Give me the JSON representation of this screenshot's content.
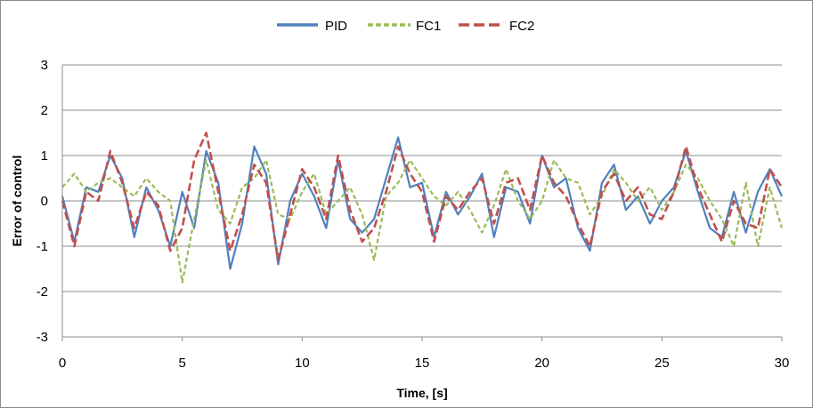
{
  "chart_data": {
    "type": "line",
    "title": "",
    "xlabel": "Time, [s]",
    "ylabel": "Error of control",
    "xlim": [
      0,
      30
    ],
    "ylim": [
      -3,
      3
    ],
    "x_ticks": [
      "0",
      "5",
      "10",
      "15",
      "20",
      "25",
      "30"
    ],
    "y_ticks": [
      "3",
      "2",
      "1",
      "0",
      "-1",
      "-2",
      "-3"
    ],
    "grid": "horizontal",
    "legend_position": "top-center",
    "series": [
      {
        "name": "PID",
        "color": "#4f81bd",
        "style": "solid",
        "x": [
          0,
          0.5,
          1,
          1.5,
          2,
          2.5,
          3,
          3.5,
          4,
          4.5,
          5,
          5.5,
          6,
          6.5,
          7,
          7.5,
          8,
          8.5,
          9,
          9.5,
          10,
          10.5,
          11,
          11.5,
          12,
          12.5,
          13,
          13.5,
          14,
          14.5,
          15,
          15.5,
          16,
          16.5,
          17,
          17.5,
          18,
          18.5,
          19,
          19.5,
          20,
          20.5,
          21,
          21.5,
          22,
          22.5,
          23,
          23.5,
          24,
          24.5,
          25,
          25.5,
          26,
          26.5,
          27,
          27.5,
          28,
          28.5,
          29,
          29.5,
          30
        ],
        "y": [
          0.1,
          -0.9,
          0.3,
          0.2,
          1.0,
          0.5,
          -0.8,
          0.3,
          -0.2,
          -1.0,
          0.2,
          -0.6,
          1.1,
          0.4,
          -1.5,
          -0.5,
          1.2,
          0.6,
          -1.4,
          0.0,
          0.6,
          0.1,
          -0.6,
          0.9,
          -0.4,
          -0.7,
          -0.4,
          0.5,
          1.4,
          0.3,
          0.4,
          -0.8,
          0.2,
          -0.3,
          0.1,
          0.6,
          -0.8,
          0.3,
          0.2,
          -0.5,
          1.0,
          0.3,
          0.5,
          -0.6,
          -1.1,
          0.4,
          0.8,
          -0.2,
          0.1,
          -0.5,
          0.0,
          0.3,
          1.1,
          0.2,
          -0.6,
          -0.8,
          0.2,
          -0.7,
          0.2,
          0.7,
          0.1
        ]
      },
      {
        "name": "FC1",
        "color": "#9bbb59",
        "style": "dashed",
        "x": [
          0,
          0.5,
          1,
          1.5,
          2,
          2.5,
          3,
          3.5,
          4,
          4.5,
          5,
          5.5,
          6,
          6.5,
          7,
          7.5,
          8,
          8.5,
          9,
          9.5,
          10,
          10.5,
          11,
          11.5,
          12,
          12.5,
          13,
          13.5,
          14,
          14.5,
          15,
          15.5,
          16,
          16.5,
          17,
          17.5,
          18,
          18.5,
          19,
          19.5,
          20,
          20.5,
          21,
          21.5,
          22,
          22.5,
          23,
          23.5,
          24,
          24.5,
          25,
          25.5,
          26,
          26.5,
          27,
          27.5,
          28,
          28.5,
          29,
          29.5,
          30
        ],
        "y": [
          0.3,
          0.6,
          0.2,
          0.4,
          0.5,
          0.3,
          0.1,
          0.5,
          0.2,
          0.0,
          -1.8,
          -0.4,
          0.9,
          -0.2,
          -0.5,
          0.3,
          0.5,
          0.9,
          -0.3,
          -0.4,
          0.2,
          0.6,
          -0.3,
          0.0,
          0.3,
          -0.3,
          -1.3,
          0.1,
          0.4,
          0.9,
          0.5,
          0.1,
          -0.1,
          0.2,
          -0.2,
          -0.7,
          -0.1,
          0.7,
          0.0,
          -0.4,
          0.0,
          0.9,
          0.5,
          0.4,
          -0.3,
          0.1,
          0.7,
          0.4,
          0.0,
          0.3,
          -0.2,
          0.2,
          0.8,
          0.5,
          0.0,
          -0.4,
          -1.0,
          0.4,
          -1.0,
          0.3,
          -0.6
        ]
      },
      {
        "name": "FC2",
        "color": "#c0504d",
        "style": "dashed",
        "x": [
          0,
          0.5,
          1,
          1.5,
          2,
          2.5,
          3,
          3.5,
          4,
          4.5,
          5,
          5.5,
          6,
          6.5,
          7,
          7.5,
          8,
          8.5,
          9,
          9.5,
          10,
          10.5,
          11,
          11.5,
          12,
          12.5,
          13,
          13.5,
          14,
          14.5,
          15,
          15.5,
          16,
          16.5,
          17,
          17.5,
          18,
          18.5,
          19,
          19.5,
          20,
          20.5,
          21,
          21.5,
          22,
          22.5,
          23,
          23.5,
          24,
          24.5,
          25,
          25.5,
          26,
          26.5,
          27,
          27.5,
          28,
          28.5,
          29,
          29.5,
          30
        ],
        "y": [
          0.0,
          -1.0,
          0.2,
          0.0,
          1.1,
          0.4,
          -0.6,
          0.2,
          -0.1,
          -1.1,
          -0.6,
          0.9,
          1.5,
          0.2,
          -1.1,
          -0.3,
          0.8,
          0.4,
          -1.3,
          -0.3,
          0.7,
          0.3,
          -0.4,
          1.0,
          -0.2,
          -0.9,
          -0.6,
          0.2,
          1.2,
          0.6,
          0.2,
          -0.9,
          0.1,
          -0.2,
          0.2,
          0.5,
          -0.5,
          0.4,
          0.5,
          -0.2,
          1.0,
          0.4,
          0.1,
          -0.5,
          -1.0,
          0.2,
          0.6,
          0.0,
          0.3,
          -0.3,
          -0.4,
          0.2,
          1.2,
          0.3,
          -0.3,
          -0.9,
          0.0,
          -0.5,
          -0.6,
          0.7,
          0.3
        ]
      }
    ]
  }
}
